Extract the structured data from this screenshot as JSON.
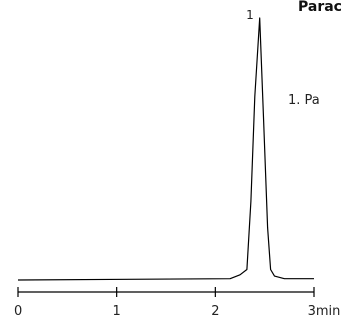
{
  "chart_data": {
    "type": "line",
    "title": "Parac",
    "legend": "1. Pa",
    "xunit": "min",
    "xlim": [
      0,
      3
    ],
    "ylim": [
      0,
      1
    ],
    "xticks": [
      {
        "value": 0,
        "label": "0"
      },
      {
        "value": 1,
        "label": "1"
      },
      {
        "value": 2,
        "label": "2"
      },
      {
        "value": 3,
        "label": "3min"
      }
    ],
    "series": [
      {
        "x": [
          0.0,
          2.15,
          2.25,
          2.32,
          2.36,
          2.4,
          2.45,
          2.49,
          2.53,
          2.56,
          2.6,
          2.7,
          3.0
        ],
        "y": [
          0.0,
          0.005,
          0.02,
          0.04,
          0.3,
          0.7,
          1.0,
          0.6,
          0.2,
          0.04,
          0.015,
          0.005,
          0.005
        ]
      }
    ],
    "annotations": [
      {
        "label": "1",
        "x": 2.45,
        "y": 1.0
      }
    ],
    "color": "#000000"
  }
}
